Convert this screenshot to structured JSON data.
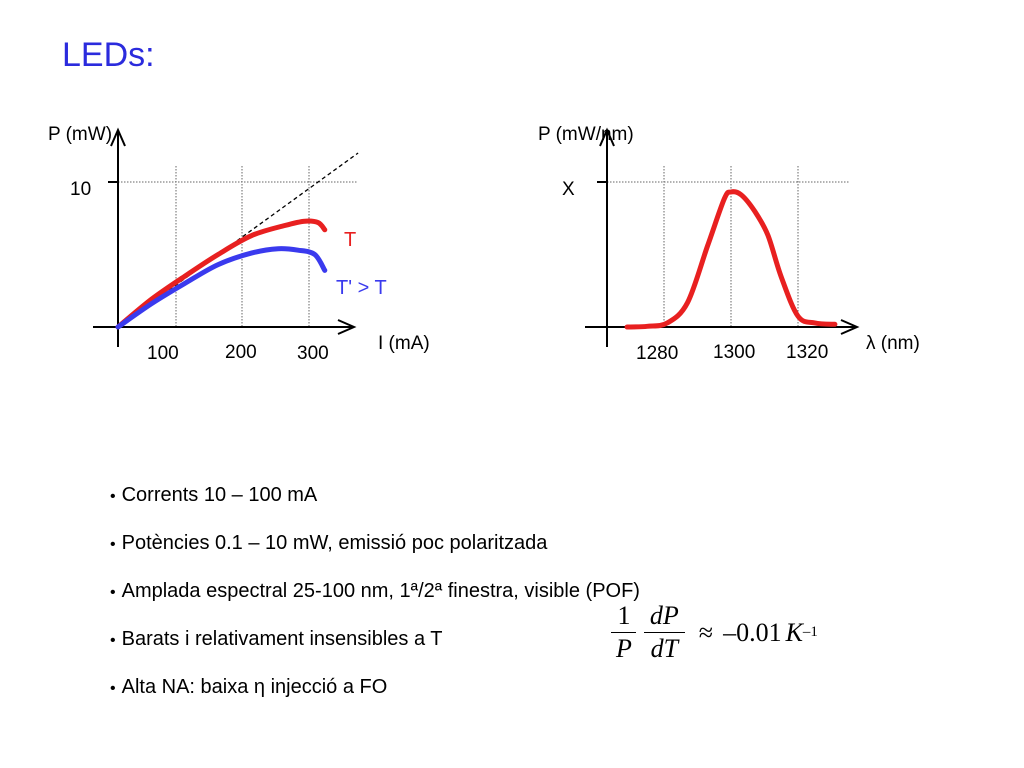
{
  "slide": {
    "title": "LEDs:"
  },
  "colors": {
    "title": "#2b2bdd",
    "red": "#e82020",
    "blue": "#3a3aee"
  },
  "bullets": [
    "Corrents 10 – 100 mA",
    "Potències 0.1 – 10 mW, emissió poc polaritzada",
    "Amplada espectral 25-100 nm, 1ª/2ª finestra, visible (POF)",
    "Barats i relativament insensibles a T",
    "Alta NA: baixa η injecció a FO"
  ],
  "formula": {
    "num1": "1",
    "den1": "P",
    "num2": "dP",
    "den2": "dT",
    "approx": "≈",
    "value": "–0.01",
    "unit": "K",
    "exp": "–1"
  },
  "chart_data": [
    {
      "type": "line",
      "ylabel": "P (mW)",
      "xlabel": "I (mA)",
      "xticks": [
        "100",
        "200",
        "300"
      ],
      "yticks": [
        "10"
      ],
      "xlim": [
        0,
        390
      ],
      "ylim": [
        0,
        12
      ],
      "grid": true,
      "series": [
        {
          "name": "T",
          "color": "#e82020",
          "x": [
            0,
            50,
            100,
            150,
            200,
            250,
            280,
            300,
            310
          ],
          "y": [
            0,
            1.9,
            3.5,
            5.0,
            6.3,
            7.0,
            7.3,
            7.2,
            6.7
          ]
        },
        {
          "name": "T' > T",
          "color": "#3a3aee",
          "x": [
            0,
            50,
            100,
            150,
            200,
            240,
            270,
            295,
            310
          ],
          "y": [
            0,
            1.6,
            3.0,
            4.3,
            5.1,
            5.4,
            5.3,
            5.0,
            3.9
          ]
        },
        {
          "name": "",
          "style": "dashed",
          "color": "#000000",
          "x": [
            0,
            360
          ],
          "y": [
            0,
            12.0
          ]
        }
      ]
    },
    {
      "type": "line",
      "ylabel": "P (mW/nm)",
      "xlabel": "λ (nm)",
      "xticks": [
        "1280",
        "1300",
        "1320"
      ],
      "yticks": [
        "X"
      ],
      "xlim": [
        1270,
        1335
      ],
      "ylim": [
        0,
        1.25
      ],
      "grid": true,
      "series": [
        {
          "name": "",
          "color": "#e82020",
          "x": [
            1269,
            1275,
            1281,
            1287,
            1293,
            1298,
            1300,
            1303,
            1307,
            1311,
            1315,
            1320,
            1325,
            1331
          ],
          "y": [
            0.0,
            0.005,
            0.03,
            0.18,
            0.6,
            0.95,
            1.0,
            0.98,
            0.86,
            0.68,
            0.37,
            0.08,
            0.03,
            0.02
          ]
        }
      ]
    }
  ]
}
